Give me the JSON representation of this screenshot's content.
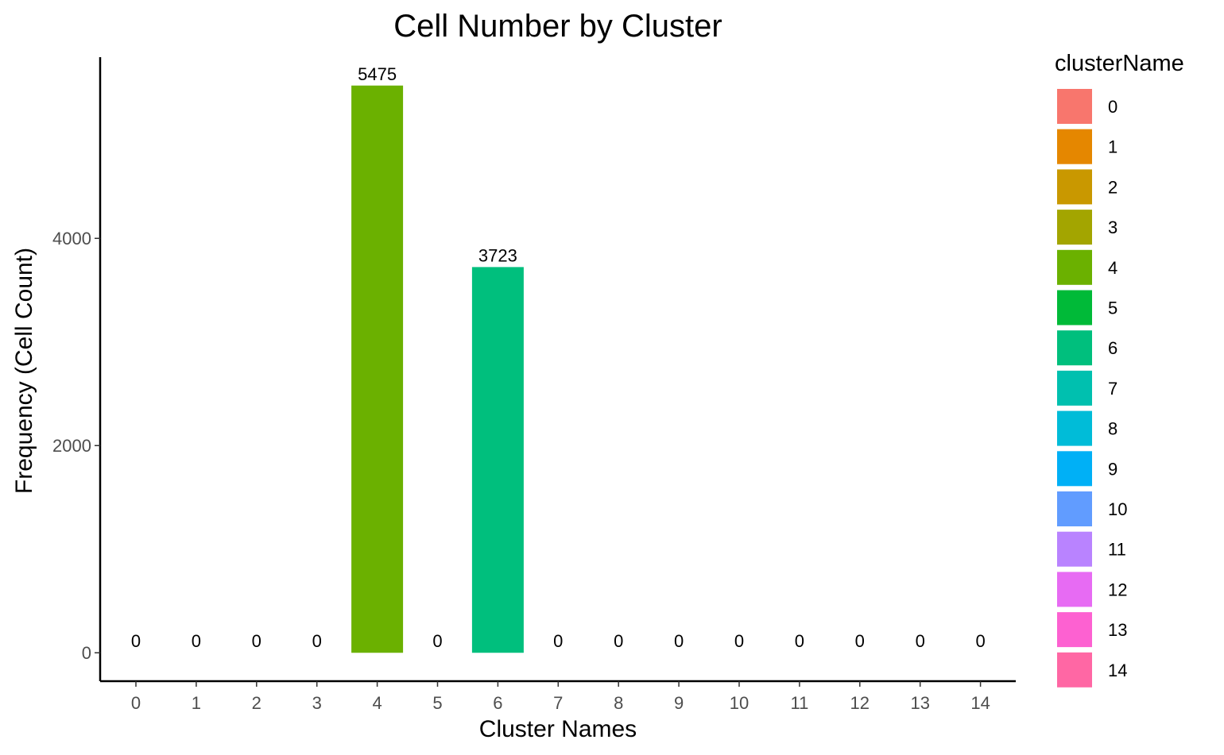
{
  "chart_data": {
    "type": "bar",
    "title": "Cell Number by Cluster",
    "xlabel": "Cluster Names",
    "ylabel": "Frequency (Cell Count)",
    "categories": [
      "0",
      "1",
      "2",
      "3",
      "4",
      "5",
      "6",
      "7",
      "8",
      "9",
      "10",
      "11",
      "12",
      "13",
      "14"
    ],
    "values": [
      0,
      0,
      0,
      0,
      5475,
      0,
      3723,
      0,
      0,
      0,
      0,
      0,
      0,
      0,
      0
    ],
    "data_labels": [
      "0",
      "0",
      "0",
      "0",
      "5475",
      "0",
      "3723",
      "0",
      "0",
      "0",
      "0",
      "0",
      "0",
      "0",
      "0"
    ],
    "colors": [
      "#F8766D",
      "#E58700",
      "#C99800",
      "#A3A500",
      "#6BB100",
      "#00BA38",
      "#00BF7D",
      "#00C0AF",
      "#00BCD8",
      "#00B0F6",
      "#619CFF",
      "#B983FF",
      "#E76BF3",
      "#FD61D1",
      "#FF67A4"
    ],
    "yticks": [
      0,
      2000,
      4000
    ],
    "ylim": [
      -274,
      5749
    ],
    "grid": false,
    "legend": {
      "title": "clusterName",
      "position": "right",
      "entries": [
        "0",
        "1",
        "2",
        "3",
        "4",
        "5",
        "6",
        "7",
        "8",
        "9",
        "10",
        "11",
        "12",
        "13",
        "14"
      ]
    }
  }
}
